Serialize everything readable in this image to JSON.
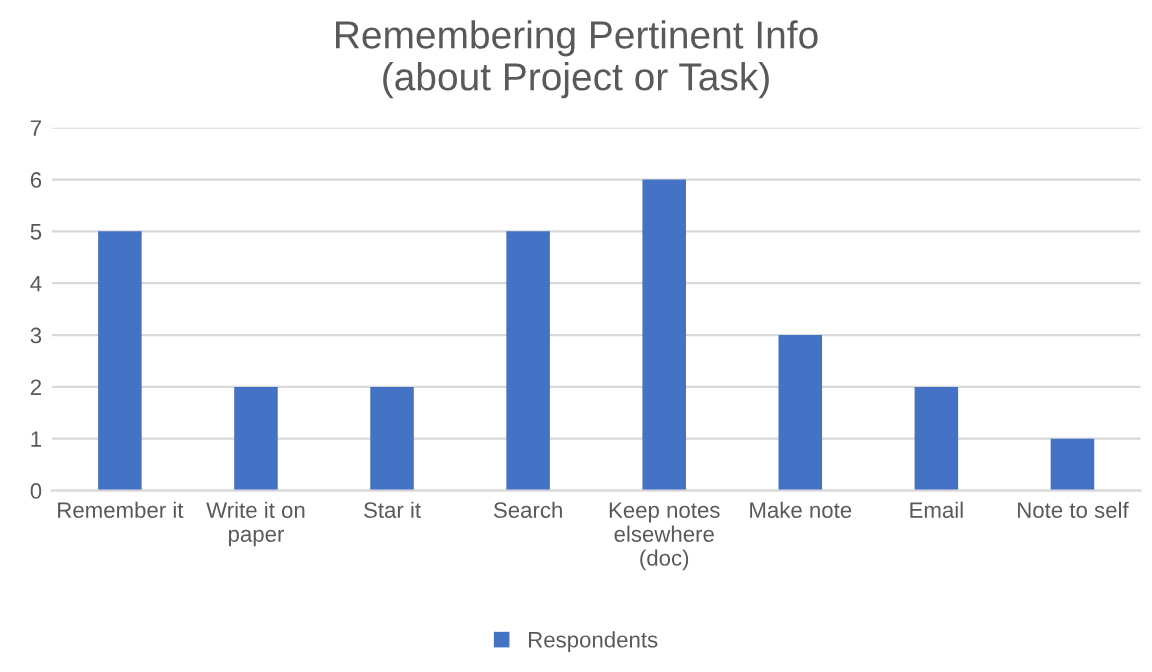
{
  "chart_data": {
    "type": "bar",
    "title": "Remembering Pertinent Info\n(about Project or Task)",
    "categories": [
      "Remember it",
      "Write it on paper",
      "Star it",
      "Search",
      "Keep notes elsewhere (doc)",
      "Make note",
      "Email",
      "Note to self"
    ],
    "series": [
      {
        "name": "Respondents",
        "color": "#4472c4",
        "values": [
          5,
          2,
          2,
          5,
          6,
          3,
          2,
          1
        ]
      }
    ],
    "ylim": [
      0,
      7
    ],
    "yticks": [
      0,
      1,
      2,
      3,
      4,
      5,
      6,
      7
    ],
    "grid": "y",
    "legend": "bottom"
  }
}
